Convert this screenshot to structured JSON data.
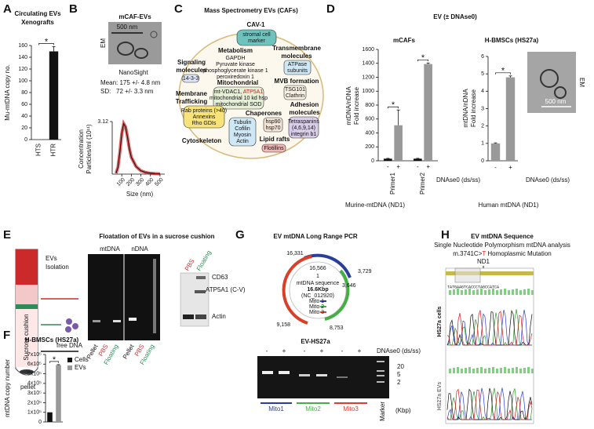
{
  "letters": [
    "A",
    "B",
    "C",
    "D",
    "E",
    "F",
    "G",
    "H"
  ],
  "chart_data": [
    {
      "type": "bar",
      "title": "Circulating EVs",
      "subtitle": "Xenografts",
      "ylabel": "Mu-mtDNA copy no.",
      "categories": [
        "HTS",
        "HTR"
      ],
      "values": [
        0,
        150
      ],
      "errors": [
        0,
        8
      ],
      "colors": [
        "#111111",
        "#111111"
      ],
      "ylim": [
        0,
        160
      ],
      "yticks": [
        0,
        20,
        40,
        60,
        80,
        100,
        120,
        140,
        160
      ],
      "annotations": [
        "*"
      ]
    },
    {
      "type": "line",
      "title": "NanoSight",
      "ylabel": "Concentration",
      "ylabel2": "Particles/ml (10¹¹)",
      "xlabel": "Size (nm)",
      "x": [
        40,
        60,
        80,
        100,
        120,
        140,
        160,
        180,
        200,
        250,
        300,
        350,
        400,
        450,
        500
      ],
      "values": [
        0.05,
        0.4,
        1.3,
        2.4,
        3.0,
        2.8,
        2.2,
        1.5,
        1.0,
        0.45,
        0.2,
        0.1,
        0.05,
        0.03,
        0.02
      ],
      "color": "#111111",
      "band_color": "#d42020",
      "xlim": [
        0,
        550
      ],
      "xticks": [
        100,
        200,
        300,
        400,
        500
      ],
      "ylim": [
        0,
        3.12
      ],
      "yticks": [
        3.12
      ]
    },
    {
      "type": "grouped_bar",
      "title": "mCAFs",
      "ylabel": "mtDNA/nDNA",
      "ylabel2": "Fold increase",
      "xlabel": "DNAse0 (ds/ss)",
      "footnote": "Murine-mtDNA (ND1)",
      "categories": [
        "Primer1",
        "Primer2"
      ],
      "series": [
        {
          "name": "-",
          "color": "#111111",
          "values": [
            30,
            30
          ],
          "errors": [
            5,
            5
          ]
        },
        {
          "name": "+",
          "color": "#999999",
          "values": [
            510,
            1390
          ],
          "errors": [
            220,
            15
          ]
        }
      ],
      "ylim": [
        0,
        1600
      ],
      "yticks": [
        0,
        200,
        400,
        600,
        800,
        1000,
        1200,
        1400,
        1600
      ],
      "annotations": [
        "*",
        "*"
      ]
    },
    {
      "type": "bar",
      "title": "H-BMSCs (HS27a)",
      "ylabel": "mtDNA/nDNA",
      "ylabel2": "Fold increase",
      "xlabel": "DNAse0 (ds/ss)",
      "footnote": "Human mtDNA (ND1)",
      "categories": [
        "-",
        "+"
      ],
      "values": [
        1,
        4.8
      ],
      "errors": [
        0.03,
        0.08
      ],
      "colors": [
        "#999999",
        "#999999"
      ],
      "ylim": [
        0,
        6
      ],
      "yticks": [
        0,
        1,
        2,
        3,
        4,
        5,
        6
      ],
      "annotations": [
        "*"
      ]
    },
    {
      "type": "bar",
      "title": "H-BMSCs (HS27a)",
      "ylabel": "mtDNA copy number",
      "legend": "right",
      "categories": [
        "Cells",
        "EVs"
      ],
      "values": [
        100000,
        590000
      ],
      "errors": [
        0,
        5000
      ],
      "colors": [
        "#111111",
        "#999999"
      ],
      "ylim": [
        0,
        700000
      ],
      "annotations": [
        "*"
      ],
      "yticks": [
        0,
        {
          "value": 100000,
          "label": "1x10⁵"
        },
        {
          "value": 200000,
          "label": "2x10⁵"
        },
        {
          "value": 300000,
          "label": "3x10⁵"
        },
        {
          "value": 400000,
          "label": "4x10⁵"
        },
        {
          "value": 500000,
          "label": "5x10⁵"
        },
        {
          "value": 600000,
          "label": "6x10⁵"
        },
        {
          "value": 700000,
          "label": "7x10⁵"
        }
      ]
    }
  ],
  "panel_B": {
    "title": "mCAF-EVs",
    "em": "EM",
    "scale": "500 nm",
    "mean": "Mean: 175 +/- 4.8 nm",
    "sd": "SD:   72 +/- 3.3 nm"
  },
  "panel_C": {
    "title": "Mass Spectrometry EVs (CAFs)",
    "cav": "CAV-1",
    "cav_box": [
      "stromal cell",
      "marker"
    ],
    "metabolism": "Metabolism",
    "metabolism_box": [
      "GAPDH",
      "Pyruvate kinase",
      "phosphoglycerate kinase 1",
      "peroxiredoxin 1"
    ],
    "transmembrane": [
      "Transmembrane",
      "molecules"
    ],
    "transmembrane_box": [
      "ATPase",
      "subunits"
    ],
    "signaling": [
      "Signaling",
      "molecules"
    ],
    "signaling_box": "14-3-3",
    "mitochondrial": "Mitochondrial",
    "mito_box": [
      "mt-VDAC1, ",
      "ATP5A1",
      "mitochondrial 10 kd hsp",
      "mitochondrial SOD"
    ],
    "mvb": "MVB formation",
    "mvb_box": [
      "TSG101",
      "Clathrin"
    ],
    "membrane": [
      "Membrane",
      "Trafficking"
    ],
    "membrane_box": [
      "Rab proteins (>40)",
      "Annexins",
      "Rho GDIs"
    ],
    "adhesion": [
      "Adhesion",
      "molecules"
    ],
    "adhesion_box": [
      "Tetraspanins",
      "(4,6,9,14)",
      "integrin b1"
    ],
    "chaperones": "Chaperones",
    "chaperones_box": [
      "hsp90",
      "hsp70"
    ],
    "cytoskeleton": "Cytoskeleton",
    "cytoskeleton_box": [
      "Tubulin",
      "Cofilin",
      "Myosin",
      "Actin"
    ],
    "lipid": "Lipid rafts",
    "lipid_box": "Flotillins"
  },
  "panel_D": {
    "title": "EV (± DNAse0)",
    "em": "EM",
    "scale": "500 nm"
  },
  "panel_E": {
    "title": "Floatation of EVs in a sucrose cushion",
    "evs": "EVs",
    "isolation": "Isolation",
    "cushion": "Sucrose cushion",
    "free_dna": "free DNA",
    "pellet": "pellet",
    "gel1": "mtDNA",
    "gel2": "nDNA",
    "lanes": [
      "Pellet",
      "PBS",
      "Floating"
    ],
    "wb_lanes": [
      "PBS",
      "Floating"
    ],
    "wb_bands": [
      "CD63",
      "ATP5A1 (C-V)",
      "Actin"
    ]
  },
  "panel_G": {
    "title": "EV mtDNA  Long Range PCR",
    "positions": [
      "16,331",
      "16,566",
      "3,729",
      "3,646",
      "9,158",
      "8,753",
      "1"
    ],
    "center": [
      "mtDNA sequence",
      "16.6Kbp",
      "(NC_012920)"
    ],
    "legend": [
      "Mito 1",
      "Mito 2",
      "Mito 3"
    ],
    "gel_title": "EV-HS27a",
    "lanes": [
      "-",
      "+",
      "-",
      "+",
      "-",
      "+"
    ],
    "dnase": "DNAse0 (ds/ss)",
    "ladder": [
      "20",
      "5",
      "2"
    ],
    "unit": "(Kbp)",
    "marker": "Marker",
    "products": [
      "Mito1",
      "Mito2",
      "Mito3"
    ]
  },
  "panel_H": {
    "title": "EV mtDNA Sequence",
    "subtitle": "Single Nucleotide Polymorphism mtDNA analysis",
    "mutation": [
      "m.3741C>",
      "T",
      " Homoplasmic Mutation"
    ],
    "gene": "ND1",
    "sequence": "TATGAAGTCACCCTAGCCATCA",
    "cells": "HS27a cells",
    "evs": "HS27a EVs"
  }
}
